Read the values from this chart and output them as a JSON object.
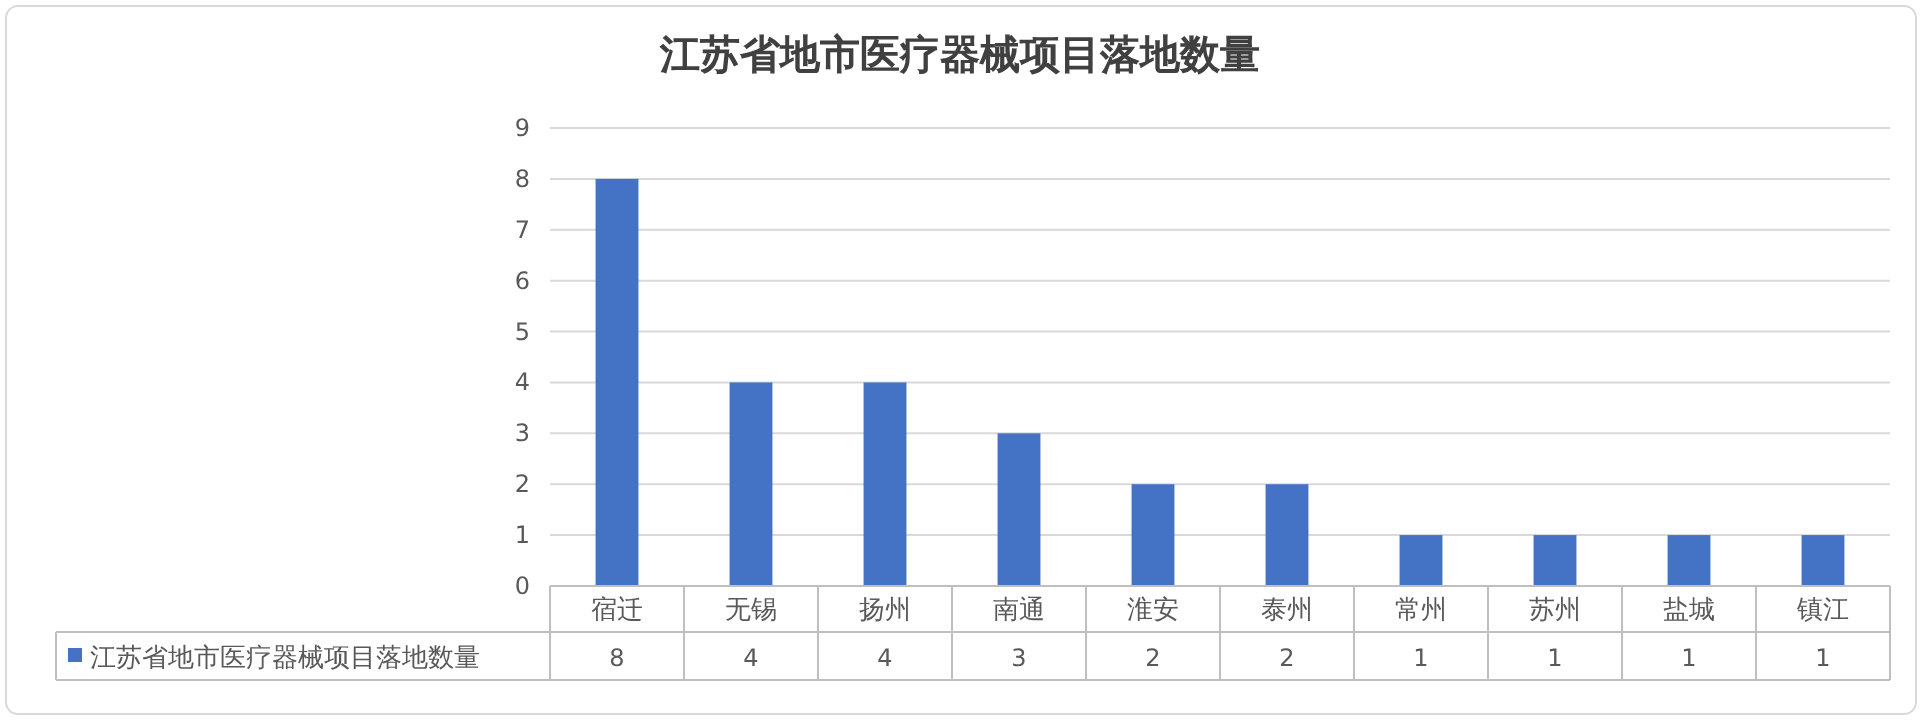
{
  "chart_data": {
    "type": "bar",
    "title": "江苏省地市医疗器械项目落地数量",
    "categories": [
      "宿迁",
      "无锡",
      "扬州",
      "南通",
      "淮安",
      "泰州",
      "常州",
      "苏州",
      "盐城",
      "镇江"
    ],
    "series": [
      {
        "name": "江苏省地市医疗器械项目落地数量",
        "color": "#4472c4",
        "values": [
          8,
          4,
          4,
          3,
          2,
          2,
          1,
          1,
          1,
          1
        ]
      }
    ],
    "ylim": [
      0,
      9
    ],
    "yticks": [
      0,
      1,
      2,
      3,
      4,
      5,
      6,
      7,
      8,
      9
    ],
    "grid": "y",
    "data_labels": true
  }
}
